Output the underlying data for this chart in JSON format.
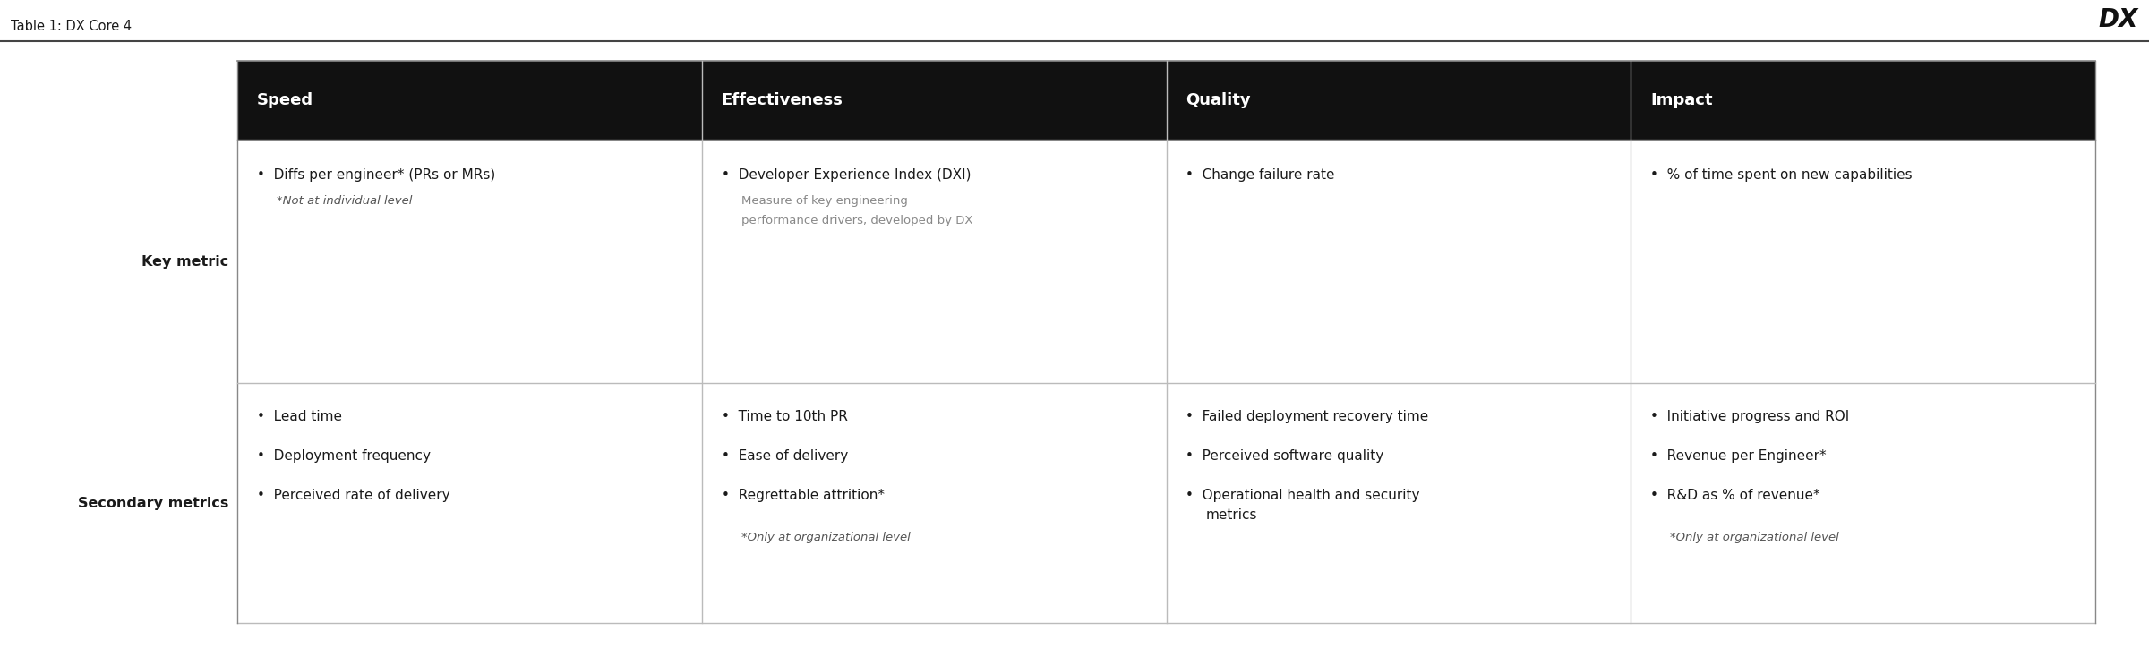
{
  "title": "Table 1: DX Core 4",
  "logo_text": "DX",
  "background_color": "#ffffff",
  "header_bg": "#111111",
  "header_text_color": "#ffffff",
  "cell_text_color": "#1a1a1a",
  "row_label_color": "#1a1a1a",
  "line_color": "#bbbbbb",
  "border_color": "#888888",
  "columns": [
    "Speed",
    "Effectiveness",
    "Quality",
    "Impact"
  ],
  "row_labels": [
    "Key metric",
    "Secondary metrics"
  ],
  "key_metric": {
    "Speed": {
      "bullet": "Diffs per engineer* (PRs or MRs)",
      "sub": "*Not at individual level"
    },
    "Effectiveness": {
      "bullet": "Developer Experience Index (DXI)",
      "sub_lines": [
        "Measure of key engineering",
        "performance drivers, developed by DX"
      ]
    },
    "Quality": {
      "bullet": "Change failure rate",
      "sub_lines": []
    },
    "Impact": {
      "bullet": "% of time spent on new capabilities",
      "sub_lines": []
    }
  },
  "secondary_metrics": {
    "Speed": [
      "Lead time",
      "Deployment frequency",
      "Perceived rate of delivery"
    ],
    "Speed_sub": "",
    "Effectiveness": [
      "Time to 10th PR",
      "Ease of delivery",
      "Regrettable attrition*"
    ],
    "Effectiveness_sub": "*Only at organizational level",
    "Quality": [
      "Failed deployment recovery time",
      "Perceived software quality",
      "Operational health and security metrics"
    ],
    "Quality_wrap": [
      false,
      false,
      true
    ],
    "Impact": [
      "Initiative progress and ROI",
      "Revenue per Engineer*",
      "R&D as % of revenue*"
    ],
    "Impact_sub": "*Only at organizational level"
  },
  "fig_width": 24.0,
  "fig_height": 7.24,
  "title_fontsize": 10.5,
  "header_fontsize": 13,
  "cell_fontsize": 11,
  "sub_fontsize": 9.5,
  "row_label_fontsize": 11.5
}
